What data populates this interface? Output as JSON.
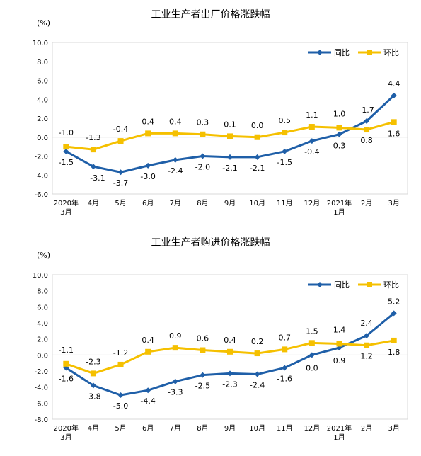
{
  "chart_data": [
    {
      "type": "line",
      "title": "工业生产者出厂价格涨跌幅",
      "unit": "(%)",
      "categories": [
        "2020年\n3月",
        "4月",
        "5月",
        "6月",
        "7月",
        "8月",
        "9月",
        "10月",
        "11月",
        "12月",
        "2021年\n1月",
        "2月",
        "3月"
      ],
      "series": [
        {
          "name": "同比",
          "color": "#1F5FA8",
          "values": [
            -1.5,
            -3.1,
            -3.7,
            -3.0,
            -2.4,
            -2.0,
            -2.1,
            -2.1,
            -1.5,
            -0.4,
            0.3,
            1.7,
            4.4
          ],
          "labels": [
            "-1.5",
            "-3.1",
            "-3.7",
            "-3.0",
            "-2.4",
            "-2.0",
            "-2.1",
            "-2.1",
            "-1.5",
            "-0.4",
            "0.3",
            "1.7",
            "4.4"
          ]
        },
        {
          "name": "环比",
          "color": "#F5C000",
          "values": [
            -1.0,
            -1.3,
            -0.4,
            0.4,
            0.4,
            0.3,
            0.1,
            0.0,
            0.5,
            1.1,
            1.0,
            0.8,
            1.6
          ],
          "labels": [
            "-1.0",
            "-1.3",
            "-0.4",
            "0.4",
            "0.4",
            "0.3",
            "0.1",
            "0.0",
            "0.5",
            "1.1",
            "1.0",
            "0.8",
            "1.6"
          ]
        }
      ],
      "ylim": [
        -6.0,
        10.0
      ],
      "yticks": [
        "10.0",
        "8.0",
        "6.0",
        "4.0",
        "2.0",
        "0.0",
        "-2.0",
        "-4.0",
        "-6.0"
      ],
      "grid": false,
      "legend": "top-right"
    },
    {
      "type": "line",
      "title": "工业生产者购进价格涨跌幅",
      "unit": "(%)",
      "categories": [
        "2020年\n3月",
        "4月",
        "5月",
        "6月",
        "7月",
        "8月",
        "9月",
        "10月",
        "11月",
        "12月",
        "2021年\n1月",
        "2月",
        "3月"
      ],
      "series": [
        {
          "name": "同比",
          "color": "#1F5FA8",
          "values": [
            -1.6,
            -3.8,
            -5.0,
            -4.4,
            -3.3,
            -2.5,
            -2.3,
            -2.4,
            -1.6,
            0.0,
            0.9,
            2.4,
            5.2
          ],
          "labels": [
            "-1.6",
            "-3.8",
            "-5.0",
            "-4.4",
            "-3.3",
            "-2.5",
            "-2.3",
            "-2.4",
            "-1.6",
            "0.0",
            "0.9",
            "2.4",
            "5.2"
          ]
        },
        {
          "name": "环比",
          "color": "#F5C000",
          "values": [
            -1.1,
            -2.3,
            -1.2,
            0.4,
            0.9,
            0.6,
            0.4,
            0.2,
            0.7,
            1.5,
            1.4,
            1.2,
            1.8
          ],
          "labels": [
            "-1.1",
            "-2.3",
            "-1.2",
            "0.4",
            "0.9",
            "0.6",
            "0.4",
            "0.2",
            "0.7",
            "1.5",
            "1.4",
            "1.2",
            "1.8"
          ]
        }
      ],
      "ylim": [
        -8.0,
        10.0
      ],
      "yticks": [
        "10.0",
        "8.0",
        "6.0",
        "4.0",
        "2.0",
        "0.0",
        "-2.0",
        "-4.0",
        "-6.0",
        "-8.0"
      ],
      "grid": false,
      "legend": "top-right"
    }
  ]
}
